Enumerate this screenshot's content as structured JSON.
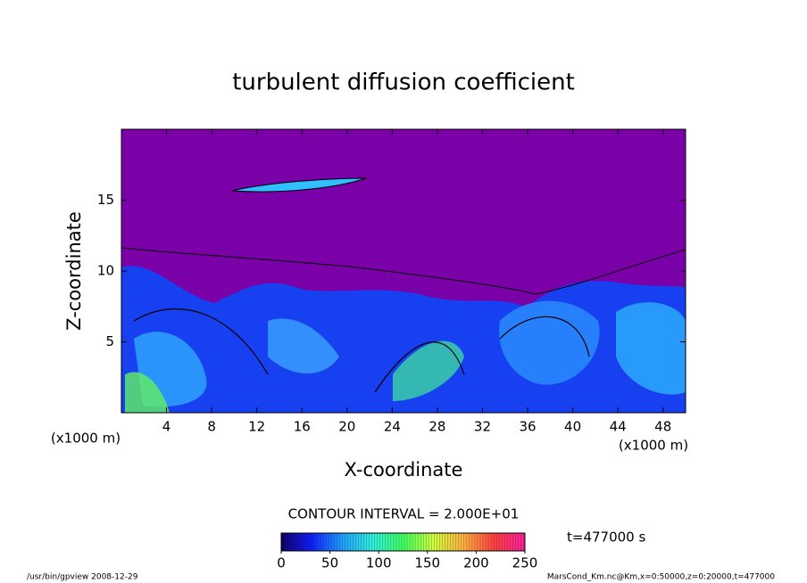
{
  "chart_data": {
    "type": "contour",
    "title": "turbulent diffusion coefficient",
    "x_label": "X-coordinate",
    "y_label": "Z-coordinate",
    "x_unit": "(x1000 m)",
    "xlim": [
      0,
      50
    ],
    "xticks": [
      4,
      8,
      12,
      16,
      20,
      24,
      28,
      32,
      36,
      40,
      44,
      48
    ],
    "ylim": [
      0,
      20
    ],
    "yticks": [
      5,
      10,
      15
    ],
    "contour_interval": "CONTOUR INTERVAL = 2.000E+01",
    "colorbar_lim": [
      0,
      250
    ],
    "colorbar_ticks": [
      0,
      50,
      100,
      150,
      200,
      250
    ],
    "colormap": [
      "#10006a",
      "#1020ff",
      "#20a0ff",
      "#30f0e0",
      "#40ff60",
      "#d0ff40",
      "#ffb040",
      "#ff4040",
      "#ff20a0"
    ],
    "time_label": "t=477000 s",
    "footer_left": "/usr/bin/gpview   2008-12-29",
    "footer_right": "MarsCond_Km.nc@Km,x=0:50000,z=0:20000,t=477000"
  }
}
